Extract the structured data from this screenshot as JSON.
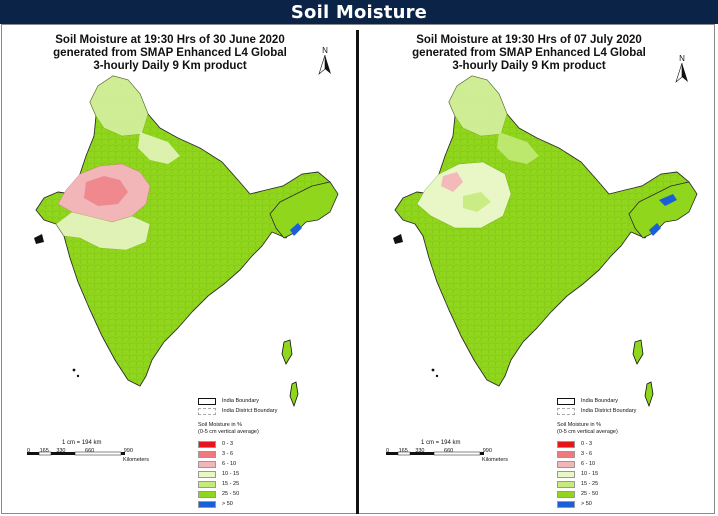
{
  "page": {
    "title": "Soil Moisture"
  },
  "maps": [
    {
      "title_lines": [
        "Soil Moisture at 19:30 Hrs of 30 June 2020",
        "generated  from SMAP Enhanced L4 Global",
        "3-hourly Daily 9 Km product"
      ],
      "north_label": "N",
      "scale_note": "1 cm = 194 km",
      "scale_ticks": [
        "0",
        "165",
        "330",
        "660",
        "990"
      ],
      "scale_unit": "Kilometers"
    },
    {
      "title_lines": [
        "Soil Moisture at 19:30 Hrs of 07 July 2020",
        "generated  from SMAP Enhanced L4 Global",
        "3-hourly Daily 9 Km product"
      ],
      "north_label": "N",
      "scale_note": "1 cm = 194 km",
      "scale_ticks": [
        "0",
        "165",
        "330",
        "660",
        "990"
      ],
      "scale_unit": "Kilometers"
    }
  ],
  "legend": {
    "boundary_items": [
      "India Boundary",
      "India District Boundary"
    ],
    "title_lines": [
      "Soil Moisture in %",
      "(0-5 cm vertical average)"
    ],
    "classes": [
      {
        "label": "0 - 3",
        "color": "#e8141b"
      },
      {
        "label": "3 - 6",
        "color": "#ee7a80"
      },
      {
        "label": "6 - 10",
        "color": "#f3b6b8"
      },
      {
        "label": "10 - 15",
        "color": "#e9f6c6"
      },
      {
        "label": "15 - 25",
        "color": "#c6eb7c"
      },
      {
        "label": "25 - 50",
        "color": "#8fd61c"
      },
      {
        "label": "> 50",
        "color": "#1a5fd6"
      }
    ]
  }
}
